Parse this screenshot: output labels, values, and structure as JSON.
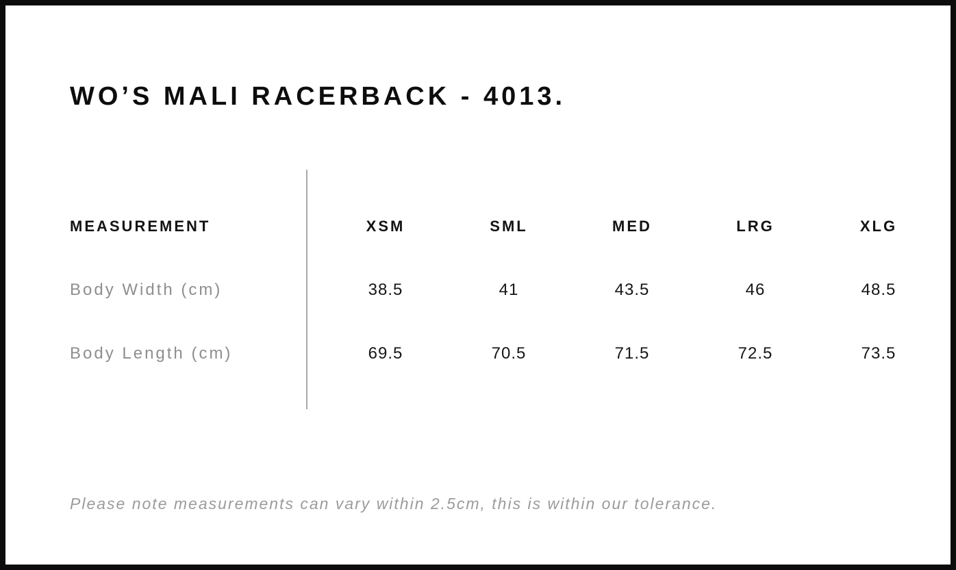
{
  "page": {
    "title": "WO’S MALI RACERBACK - 4013."
  },
  "table": {
    "measurement_header": "MEASUREMENT",
    "sizes": [
      "XSM",
      "SML",
      "MED",
      "LRG",
      "XLG"
    ],
    "rows": [
      {
        "label": "Body Width (cm)",
        "values": [
          "38.5",
          "41",
          "43.5",
          "46",
          "48.5"
        ]
      },
      {
        "label": "Body Length (cm)",
        "values": [
          "69.5",
          "70.5",
          "71.5",
          "72.5",
          "73.5"
        ]
      }
    ]
  },
  "note": "Please note measurements can vary within 2.5cm, this is within our tolerance.",
  "colors": {
    "frame_border": "#0c0c0c",
    "title_text": "#0d0d0d",
    "header_text": "#131313",
    "row_label_text": "#8e8e8e",
    "value_text": "#161616",
    "divider": "#a9a9a9",
    "note_text": "#9b9b9b",
    "background": "#ffffff"
  }
}
